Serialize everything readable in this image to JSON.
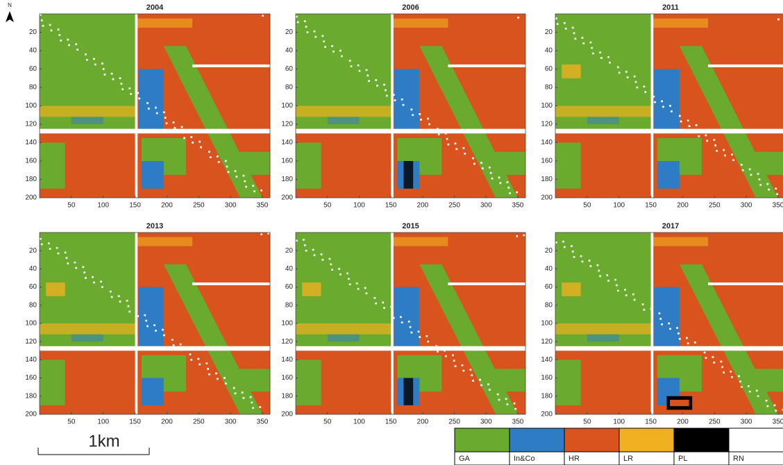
{
  "north": "N",
  "maps": [
    {
      "title": "2004"
    },
    {
      "title": "2006"
    },
    {
      "title": "2011"
    },
    {
      "title": "2013"
    },
    {
      "title": "2015"
    },
    {
      "title": "2017"
    }
  ],
  "xlim": [
    0,
    362
  ],
  "ylim": [
    0,
    200
  ],
  "xticks": [
    50,
    100,
    150,
    200,
    250,
    300,
    350
  ],
  "yticks": [
    20,
    40,
    60,
    80,
    100,
    120,
    140,
    160,
    180,
    200
  ],
  "legend": [
    {
      "label": "GA",
      "color": "#6aaa2e"
    },
    {
      "label": "In&Co",
      "color": "#2e7cc4"
    },
    {
      "label": "HR",
      "color": "#d9531e"
    },
    {
      "label": "LR",
      "color": "#f0b020"
    },
    {
      "label": "PL",
      "color": "#000000"
    },
    {
      "label": "RN",
      "color": "#ffffff"
    }
  ],
  "scale_bar": "1km"
}
